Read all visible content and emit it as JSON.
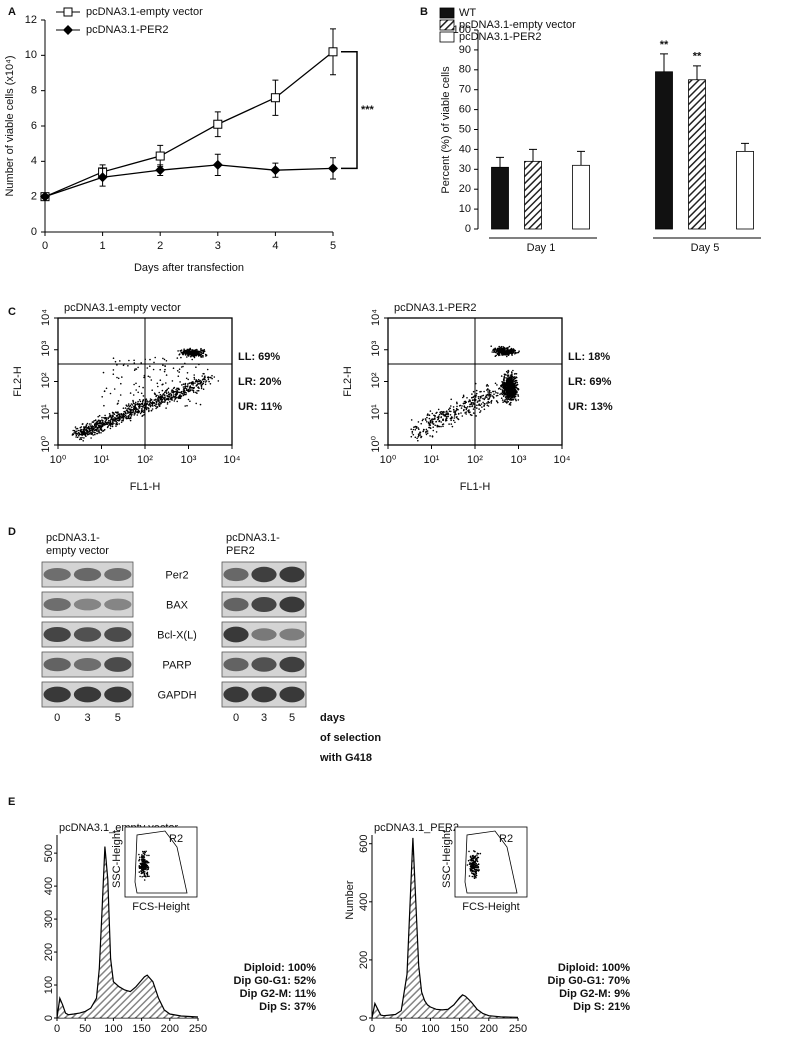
{
  "chart_data": [
    {
      "type": "line",
      "panel": "A",
      "xlabel": "Days after transfection",
      "ylabel": "Number of viable cells (x10⁴)",
      "x": [
        0,
        1,
        2,
        3,
        4,
        5
      ],
      "xlim": [
        0,
        5
      ],
      "xticks": [
        0,
        1,
        2,
        3,
        4,
        5
      ],
      "ylim": [
        0,
        12
      ],
      "yticks": [
        0,
        2,
        4,
        6,
        8,
        10,
        12
      ],
      "series": [
        {
          "name": "pcDNA3.1-empty vector",
          "color": "#000000",
          "marker": "square",
          "values": [
            2,
            3.4,
            4.3,
            6.1,
            7.6,
            10.2
          ],
          "errors": [
            0.1,
            0.4,
            0.6,
            0.7,
            1.0,
            1.3
          ]
        },
        {
          "name": "pcDNA3.1-PER2",
          "color": "#000000",
          "marker": "diamond",
          "values": [
            2,
            3.1,
            3.5,
            3.8,
            3.5,
            3.6
          ],
          "errors": [
            0.1,
            0.5,
            0.3,
            0.6,
            0.4,
            0.6
          ]
        }
      ],
      "annotation": "***"
    },
    {
      "type": "bar",
      "panel": "B",
      "ylabel": "Percent (%) of viable cells",
      "categories": [
        "Day 1",
        "Day 5"
      ],
      "ylim": [
        0,
        100
      ],
      "yticks": [
        0,
        10,
        20,
        30,
        40,
        50,
        60,
        70,
        80,
        90,
        100
      ],
      "series": [
        {
          "name": "WT",
          "color": "#111111",
          "pattern": "solid",
          "values": [
            31,
            79
          ],
          "errors": [
            5,
            9
          ]
        },
        {
          "name": "pcDNA3.1-empty vector",
          "color": "#222222",
          "pattern": "diagonal",
          "values": [
            34,
            75
          ],
          "errors": [
            6,
            7
          ]
        },
        {
          "name": "pcDNA3.1-PER2",
          "color": "#ffffff",
          "pattern": "solid",
          "values": [
            32,
            39
          ],
          "errors": [
            7,
            4
          ]
        }
      ],
      "annotations": [
        "**",
        "**"
      ]
    },
    {
      "type": "scatter",
      "panel": "C",
      "title": "pcDNA3.1-empty vector",
      "xlabel": "FL1-H",
      "ylabel": "FL2-H",
      "log_scale": true,
      "xlim": [
        1,
        10000
      ],
      "ylim": [
        1,
        10000
      ],
      "xticks": [
        {
          "value": 1,
          "label": "10⁰"
        },
        {
          "value": 10,
          "label": "10¹"
        },
        {
          "value": 100,
          "label": "10²"
        },
        {
          "value": 1000,
          "label": "10³"
        },
        {
          "value": 10000,
          "label": "10⁴"
        }
      ],
      "yticks": [
        {
          "value": 1,
          "label": "10⁰"
        },
        {
          "value": 10,
          "label": "10¹"
        },
        {
          "value": 100,
          "label": "10²"
        },
        {
          "value": 1000,
          "label": "10³"
        },
        {
          "value": 10000,
          "label": "10⁴"
        }
      ],
      "quadrant_labels": [
        "LL: 69%",
        "LR: 20%",
        "UR: 11%"
      ]
    },
    {
      "type": "scatter",
      "title": "pcDNA3.1-PER2",
      "xlabel": "FL1-H",
      "ylabel": "FL2-H",
      "log_scale": true,
      "xlim": [
        1,
        10000
      ],
      "ylim": [
        1,
        10000
      ],
      "xticks": [
        {
          "value": 1,
          "label": "10⁰"
        },
        {
          "value": 10,
          "label": "10¹"
        },
        {
          "value": 100,
          "label": "10²"
        },
        {
          "value": 1000,
          "label": "10³"
        },
        {
          "value": 10000,
          "label": "10⁴"
        }
      ],
      "yticks": [
        {
          "value": 1,
          "label": "10⁰"
        },
        {
          "value": 10,
          "label": "10¹"
        },
        {
          "value": 100,
          "label": "10²"
        },
        {
          "value": 1000,
          "label": "10³"
        },
        {
          "value": 10000,
          "label": "10⁴"
        }
      ],
      "quadrant_labels": [
        "LL: 18%",
        "LR: 69%",
        "UR: 13%"
      ]
    },
    {
      "type": "area",
      "panel": "E",
      "title": "pcDNA3.1_empty vector",
      "color": "#000000",
      "x": [
        0,
        5,
        10,
        15,
        20,
        30,
        40,
        50,
        60,
        70,
        75,
        80,
        85,
        90,
        95,
        100,
        110,
        120,
        130,
        140,
        150,
        155,
        160,
        170,
        180,
        190,
        200,
        220,
        250
      ],
      "values": [
        0,
        60,
        40,
        15,
        10,
        12,
        15,
        20,
        30,
        60,
        150,
        330,
        520,
        420,
        180,
        110,
        95,
        85,
        80,
        95,
        115,
        125,
        130,
        110,
        60,
        25,
        12,
        6,
        3
      ],
      "xlim": [
        0,
        250
      ],
      "xticks": [
        0,
        50,
        100,
        150,
        200,
        250
      ],
      "ylim": [
        0,
        555
      ],
      "yticks": [
        0,
        100,
        200,
        300,
        400,
        500
      ],
      "inset": {
        "gate": "R2",
        "ylabel": "SSC-Height",
        "xlabel": "FCS-Height"
      },
      "stats": [
        "Diploid: 100%",
        "Dip G0-G1: 52%",
        "Dip G2-M: 11%",
        "Dip S: 37%"
      ]
    },
    {
      "type": "area",
      "title": "pcDNA3.1_PER2",
      "ylabel": "Number",
      "color": "#000000",
      "x": [
        0,
        5,
        10,
        15,
        20,
        30,
        40,
        50,
        60,
        70,
        75,
        80,
        85,
        90,
        95,
        100,
        110,
        120,
        130,
        140,
        150,
        155,
        160,
        170,
        180,
        190,
        200,
        220,
        250
      ],
      "values": [
        0,
        50,
        30,
        10,
        8,
        10,
        12,
        25,
        150,
        620,
        400,
        180,
        90,
        60,
        45,
        38,
        30,
        28,
        30,
        45,
        70,
        80,
        75,
        55,
        30,
        15,
        8,
        4,
        2
      ],
      "xlim": [
        0,
        250
      ],
      "xticks": [
        0,
        50,
        100,
        150,
        200,
        250
      ],
      "ylim": [
        0,
        630
      ],
      "yticks": [
        0,
        200,
        400,
        600
      ],
      "inset": {
        "gate": "R2",
        "ylabel": "SSC-Height",
        "xlabel": "FCS-Height"
      },
      "stats": [
        "Diploid: 100%",
        "Dip G0-G1: 70%",
        "Dip G2-M: 9%",
        "Dip S: 21%"
      ]
    }
  ],
  "blot": {
    "panel": "D",
    "groups": [
      {
        "header": [
          "pcDNA3.1-",
          "empty vector"
        ],
        "lanes": [
          "0",
          "3",
          "5"
        ]
      },
      {
        "header": [
          "pcDNA3.1-",
          "PER2"
        ],
        "lanes": [
          "0",
          "3",
          "5"
        ]
      }
    ],
    "proteins": [
      "Per2",
      "BAX",
      "Bcl-X(L)",
      "PARP",
      "GAPDH"
    ],
    "note": [
      "days",
      "of selection",
      "with G418"
    ]
  }
}
